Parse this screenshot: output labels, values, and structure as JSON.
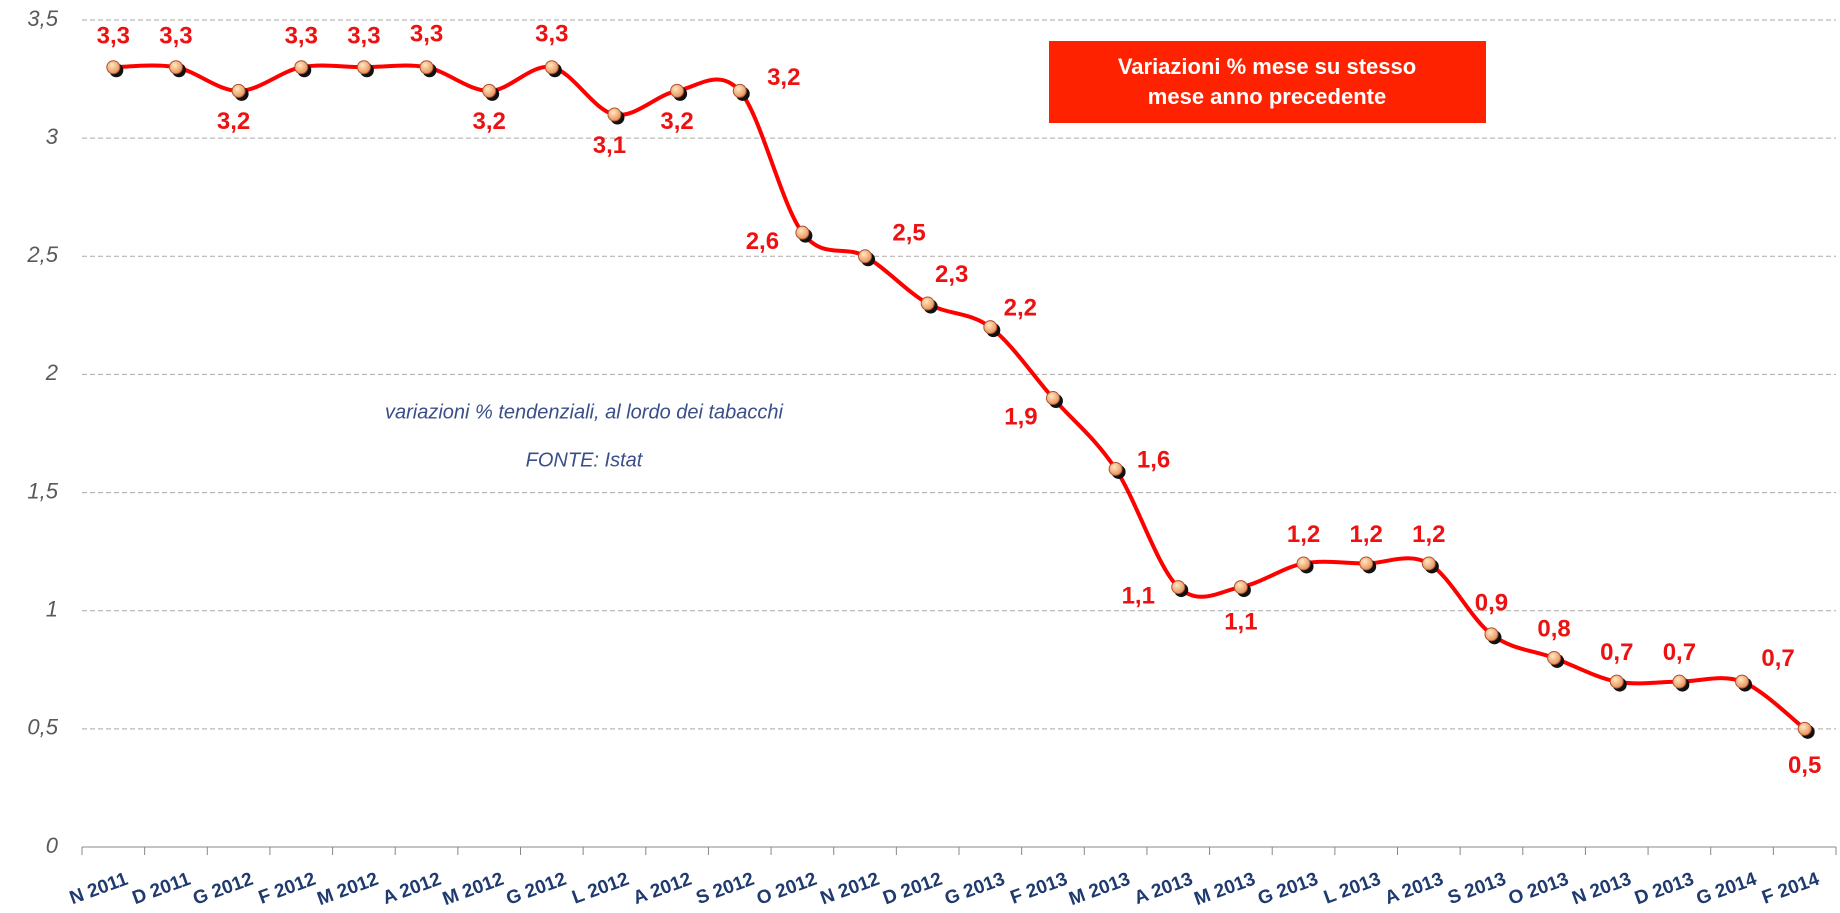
{
  "chart_data": {
    "type": "line",
    "title": [
      "Variazioni % mese su stesso",
      "mese anno precedente"
    ],
    "annotations": [
      "variazioni % tendenziali, al lordo dei tabacchi",
      "FONTE: Istat"
    ],
    "categories": [
      "N 2011",
      "D 2011",
      "G 2012",
      "F 2012",
      "M 2012",
      "A 2012",
      "M 2012",
      "G 2012",
      "L 2012",
      "A 2012",
      "S 2012",
      "O 2012",
      "N 2012",
      "D 2012",
      "G 2013",
      "F 2013",
      "M 2013",
      "A 2013",
      "M 2013",
      "G 2013",
      "L 2013",
      "A 2013",
      "S 2013",
      "O 2013",
      "N 2013",
      "D 2013",
      "G 2014",
      "F 2014"
    ],
    "series": [
      {
        "name": "Variazioni %",
        "color": "#ff0000",
        "values": [
          3.3,
          3.3,
          3.2,
          3.3,
          3.3,
          3.3,
          3.2,
          3.3,
          3.1,
          3.2,
          3.2,
          2.6,
          2.5,
          2.3,
          2.2,
          1.9,
          1.6,
          1.1,
          1.1,
          1.2,
          1.2,
          1.2,
          0.9,
          0.8,
          0.7,
          0.7,
          0.7,
          0.5
        ],
        "value_labels": [
          "3,3",
          "3,3",
          "3,2",
          "3,3",
          "3,3",
          "3,3",
          "3,2",
          "3,3",
          "3,1",
          "3,2",
          "3,2",
          "2,6",
          "2,5",
          "2,3",
          "2,2",
          "1,9",
          "1,6",
          "1,1",
          "1,1",
          "1,2",
          "1,2",
          "1,2",
          "0,9",
          "0,8",
          "0,7",
          "0,7",
          "0,7",
          "0,5"
        ]
      }
    ],
    "ylim": [
      0,
      3.5
    ],
    "yticks": [
      0,
      {
        "value": 0.5,
        "label": "0,5"
      },
      1,
      {
        "value": 1.5,
        "label": "1,5"
      },
      2,
      {
        "value": 2.5,
        "label": "2,5"
      },
      3,
      {
        "value": 3.5,
        "label": "3,5"
      }
    ],
    "grid": true
  }
}
